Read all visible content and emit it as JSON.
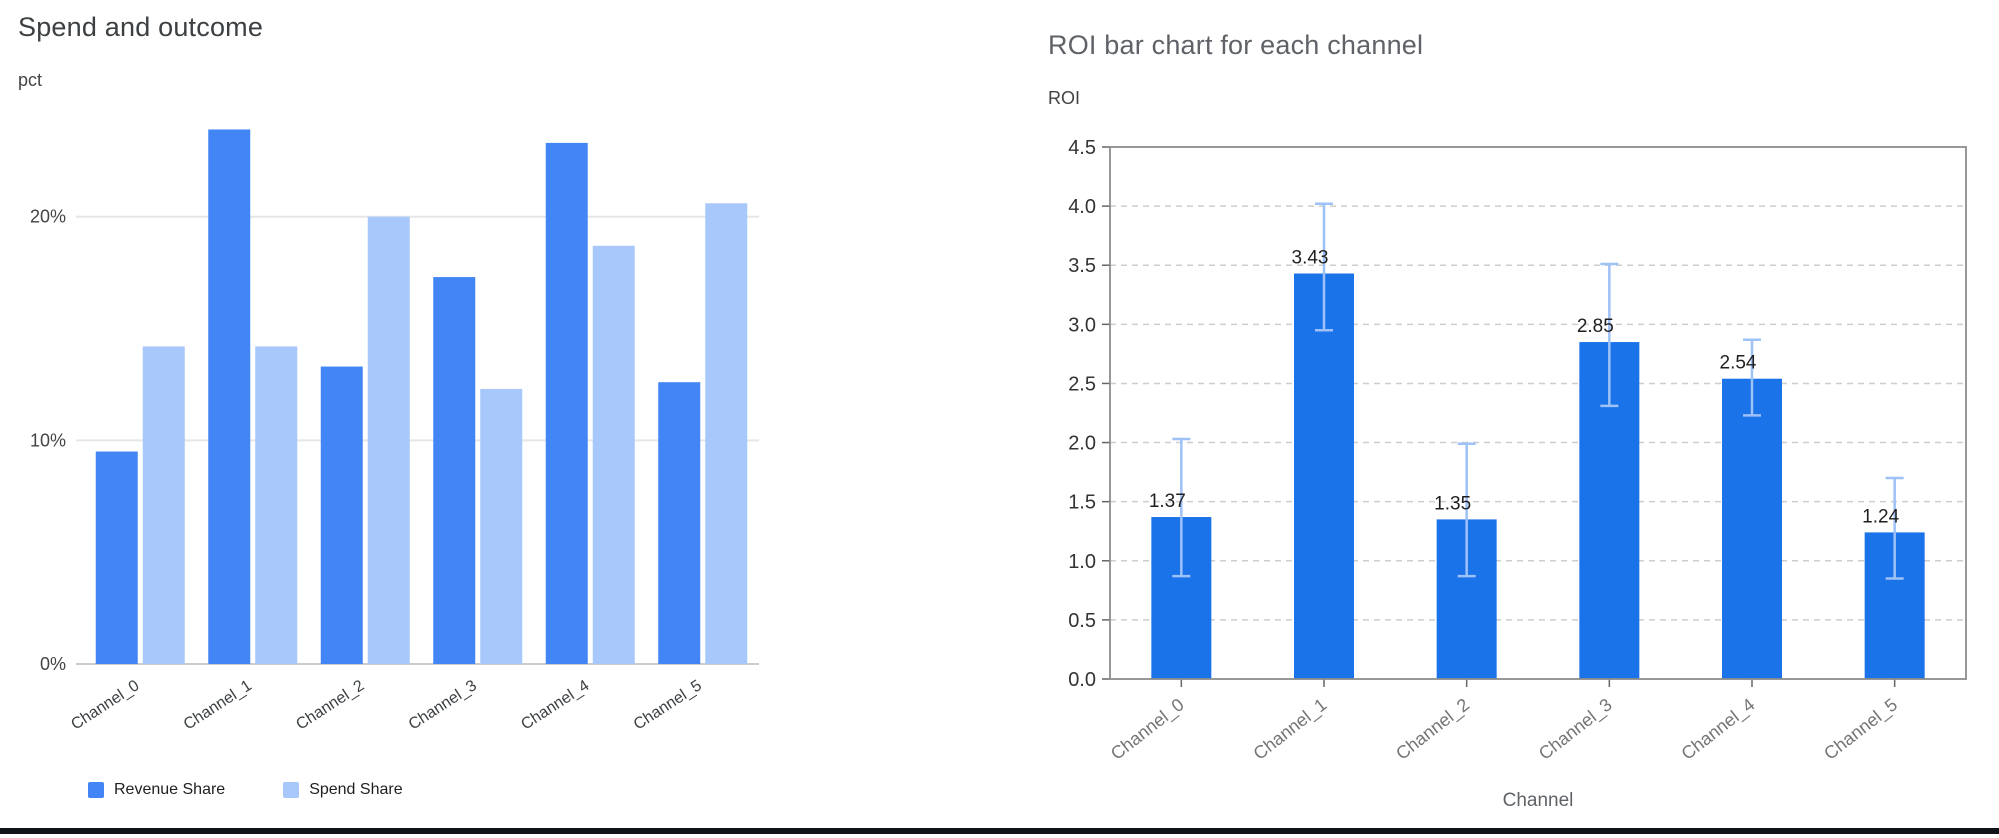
{
  "page": {
    "background": "#ffffff",
    "divider_color": "#101418"
  },
  "chart_data": [
    {
      "type": "bar",
      "title": "Spend and outcome",
      "ylabel": "pct",
      "xlabel": "",
      "categories": [
        "Channel_0",
        "Channel_1",
        "Channel_2",
        "Channel_3",
        "Channel_4",
        "Channel_5"
      ],
      "series": [
        {
          "name": "Revenue Share",
          "color": "#4285f4",
          "values": [
            9.5,
            23.9,
            13.3,
            17.3,
            23.3,
            12.6
          ]
        },
        {
          "name": "Spend Share",
          "color": "#a8c7fa",
          "values": [
            14.2,
            14.2,
            20.0,
            12.3,
            18.7,
            20.6
          ]
        }
      ],
      "y_ticks": [
        0,
        10,
        20
      ],
      "y_tick_labels": [
        "0%",
        "10%",
        "20%"
      ],
      "ylim": [
        0,
        24.1
      ],
      "grid": true,
      "legend_position": "bottom"
    },
    {
      "type": "bar",
      "title": "ROI bar chart for each channel",
      "ylabel": "ROI",
      "xlabel": "Channel",
      "categories": [
        "Channel_0",
        "Channel_1",
        "Channel_2",
        "Channel_3",
        "Channel_4",
        "Channel_5"
      ],
      "values": [
        1.37,
        3.43,
        1.35,
        2.85,
        2.54,
        1.24
      ],
      "bar_labels": [
        "1.37",
        "3.43",
        "1.35",
        "2.85",
        "2.54",
        "1.24"
      ],
      "error_low": [
        0.87,
        2.95,
        0.87,
        2.31,
        2.23,
        0.85
      ],
      "error_high": [
        2.03,
        4.02,
        1.99,
        3.51,
        2.87,
        1.7
      ],
      "y_ticks": [
        0.0,
        0.5,
        1.0,
        1.5,
        2.0,
        2.5,
        3.0,
        3.5,
        4.0,
        4.5
      ],
      "ylim": [
        0,
        4.5
      ],
      "bar_color": "#1a73e8",
      "error_color": "#9ec1f7",
      "grid": "dashed",
      "frame": true
    }
  ]
}
